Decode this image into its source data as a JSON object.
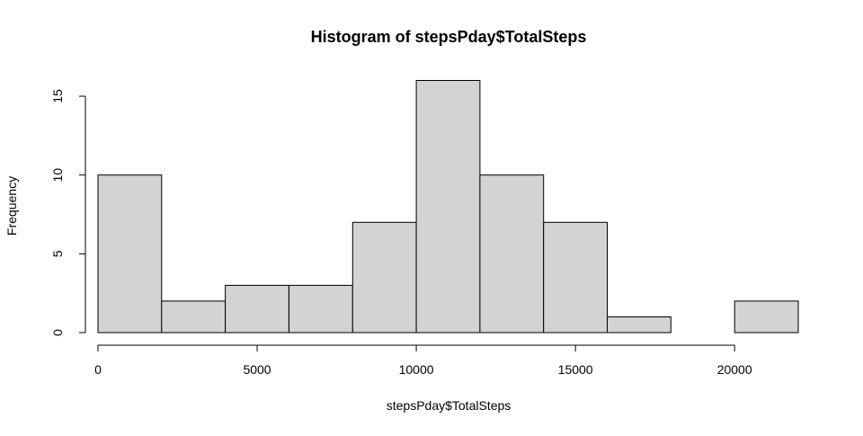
{
  "chart_data": {
    "type": "bar",
    "subtype": "histogram",
    "title": "Histogram of stepsPday$TotalSteps",
    "xlabel": "stepsPday$TotalSteps",
    "ylabel": "Frequency",
    "bins": [
      {
        "start": 0,
        "end": 2000,
        "count": 10
      },
      {
        "start": 2000,
        "end": 4000,
        "count": 2
      },
      {
        "start": 4000,
        "end": 6000,
        "count": 3
      },
      {
        "start": 6000,
        "end": 8000,
        "count": 3
      },
      {
        "start": 8000,
        "end": 10000,
        "count": 7
      },
      {
        "start": 10000,
        "end": 12000,
        "count": 16
      },
      {
        "start": 12000,
        "end": 14000,
        "count": 10
      },
      {
        "start": 14000,
        "end": 16000,
        "count": 7
      },
      {
        "start": 16000,
        "end": 18000,
        "count": 1
      },
      {
        "start": 18000,
        "end": 20000,
        "count": 0
      },
      {
        "start": 20000,
        "end": 22000,
        "count": 2
      }
    ],
    "x_ticks": [
      0,
      5000,
      10000,
      15000,
      20000
    ],
    "y_ticks": [
      0,
      5,
      10,
      15
    ],
    "xlim": [
      0,
      22000
    ],
    "ylim": [
      0,
      16
    ],
    "grid": false,
    "legend": "none",
    "colors": {
      "bar_fill": "#d3d3d3",
      "bar_stroke": "#000000",
      "axis": "#000000",
      "background": "#ffffff"
    }
  }
}
